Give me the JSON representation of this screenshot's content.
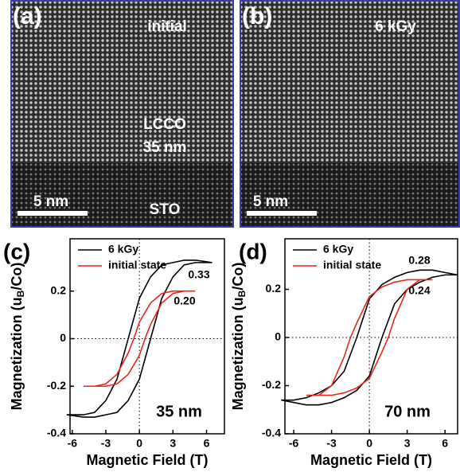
{
  "images": [
    {
      "panel": "(a)",
      "labels": [
        "initial",
        "LCCO",
        "35 nm",
        "STO"
      ],
      "scale_bar": "5 nm"
    },
    {
      "panel": "(b)",
      "labels": [
        "6 kGy"
      ],
      "scale_bar": "5 nm"
    }
  ],
  "chart_data": [
    {
      "type": "line",
      "panel": "(c)",
      "x_label": "Magnetic Field (T)",
      "y_label": {
        "main": "Magnetization  (u",
        "sub": "B",
        "end": "/Co)"
      },
      "xlim": [
        -6.2,
        7.6
      ],
      "ylim": [
        -0.4,
        0.42
      ],
      "xticks": [
        -6,
        -3,
        0,
        3,
        6
      ],
      "yticks": [
        -0.4,
        -0.2,
        0,
        0.2
      ],
      "legend": "top-left",
      "inset_label": "35 nm",
      "annotations": [
        "0.33",
        "0.20"
      ],
      "series": [
        {
          "name": "6 kGy",
          "color": "#000000",
          "x": [
            6.5,
            5,
            4,
            3,
            2,
            1,
            0,
            -1,
            -2,
            -3,
            -4,
            -5,
            -6.5,
            -6.5,
            -5,
            -4,
            -3,
            -2,
            -1,
            0,
            1,
            2,
            3,
            4,
            5,
            6.5
          ],
          "values": [
            0.32,
            0.33,
            0.33,
            0.32,
            0.31,
            0.26,
            0.17,
            0,
            -0.17,
            -0.26,
            -0.31,
            -0.32,
            -0.32,
            -0.32,
            -0.33,
            -0.33,
            -0.32,
            -0.31,
            -0.26,
            -0.17,
            0,
            0.17,
            0.26,
            0.31,
            0.32,
            0.32
          ]
        },
        {
          "name": "initial state",
          "color": "#e8251f",
          "x": [
            5,
            4,
            3,
            2,
            1,
            0,
            -0.5,
            -1,
            -2,
            -3,
            -4,
            -5,
            -5,
            -4,
            -3,
            -2,
            -1,
            0,
            0.5,
            1,
            2,
            3,
            4,
            5
          ],
          "values": [
            0.2,
            0.2,
            0.2,
            0.19,
            0.15,
            0.07,
            0,
            -0.06,
            -0.15,
            -0.19,
            -0.2,
            -0.2,
            -0.2,
            -0.2,
            -0.2,
            -0.19,
            -0.15,
            -0.07,
            0,
            0.06,
            0.15,
            0.19,
            0.2,
            0.2
          ]
        }
      ]
    },
    {
      "type": "line",
      "panel": "(d)",
      "x_label": "Magnetic Field (T)",
      "y_label": {
        "main": "Magnetization  (u",
        "sub": "B",
        "end": "/Co)"
      },
      "xlim": [
        -6.7,
        7.0
      ],
      "ylim": [
        -0.4,
        0.41
      ],
      "xticks": [
        -6,
        -3,
        0,
        3,
        6
      ],
      "yticks": [
        -0.4,
        -0.2,
        0,
        0.2
      ],
      "legend": "top-left",
      "inset_label": "70 nm",
      "annotations": [
        "0.28",
        "0.24"
      ],
      "series": [
        {
          "name": "6 kGy",
          "color": "#000000",
          "x": [
            7,
            6,
            5,
            4,
            3,
            2,
            1,
            0,
            -1,
            -2,
            -3,
            -4,
            -5,
            -6,
            -7,
            -7,
            -6,
            -5,
            -4,
            -3,
            -2,
            -1,
            0,
            1,
            2,
            3,
            4,
            5,
            6,
            7
          ],
          "values": [
            0.26,
            0.27,
            0.28,
            0.28,
            0.27,
            0.25,
            0.22,
            0.16,
            0,
            -0.14,
            -0.2,
            -0.23,
            -0.25,
            -0.26,
            -0.26,
            -0.26,
            -0.27,
            -0.28,
            -0.28,
            -0.27,
            -0.25,
            -0.22,
            -0.16,
            0,
            0.14,
            0.2,
            0.23,
            0.25,
            0.26,
            0.26
          ]
        },
        {
          "name": "initial state",
          "color": "#e8251f",
          "x": [
            5,
            4,
            3,
            2,
            1,
            0,
            -1,
            -1.5,
            -2,
            -3,
            -4,
            -5,
            -5,
            -4,
            -3,
            -2,
            -1,
            0,
            1,
            1.5,
            2,
            3,
            4,
            5
          ],
          "values": [
            0.24,
            0.24,
            0.24,
            0.23,
            0.21,
            0.17,
            0.06,
            0,
            -0.08,
            -0.2,
            -0.24,
            -0.24,
            -0.24,
            -0.24,
            -0.24,
            -0.23,
            -0.21,
            -0.17,
            -0.06,
            0,
            0.08,
            0.2,
            0.24,
            0.24
          ]
        }
      ]
    }
  ]
}
